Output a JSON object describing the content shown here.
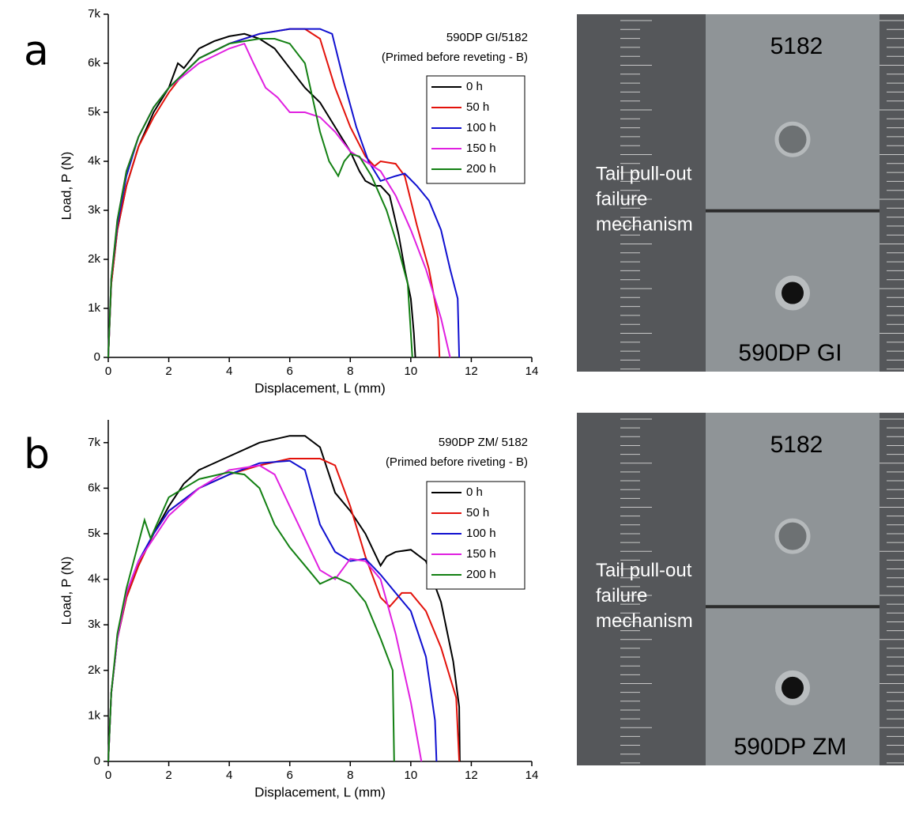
{
  "chart_data": [
    {
      "type": "line",
      "panel_label": "a",
      "annotations": [
        "590DP GI/5182",
        "(Primed before reveting - B)"
      ],
      "x_label": "Displacement, L (mm)",
      "y_label": "Load, P (N)",
      "xlim": [
        0,
        14
      ],
      "xticks": [
        0,
        2,
        4,
        6,
        8,
        10,
        12,
        14
      ],
      "ylim": [
        0,
        7000
      ],
      "yticks": [
        0,
        {
          "value": 1000,
          "label": "1k"
        },
        {
          "value": 2000,
          "label": "2k"
        },
        {
          "value": 3000,
          "label": "3k"
        },
        {
          "value": 4000,
          "label": "4k"
        },
        {
          "value": 5000,
          "label": "5k"
        },
        {
          "value": 6000,
          "label": "6k"
        },
        {
          "value": 7000,
          "label": "7k"
        }
      ],
      "legend": "upper right",
      "series": [
        {
          "name": "0 h",
          "color": "#000000",
          "x": [
            0,
            0.1,
            0.3,
            0.6,
            1,
            1.5,
            2,
            2.3,
            2.5,
            3,
            3.5,
            4,
            4.5,
            5,
            5.5,
            6,
            6.5,
            7,
            7.5,
            8,
            8.3,
            8.5,
            8.8,
            9,
            9.3,
            9.6,
            9.8,
            10,
            10.1,
            10.15
          ],
          "values": [
            0,
            1500,
            2600,
            3500,
            4300,
            5000,
            5500,
            6000,
            5900,
            6300,
            6450,
            6550,
            6600,
            6500,
            6300,
            5900,
            5500,
            5200,
            4700,
            4200,
            3800,
            3600,
            3500,
            3500,
            3300,
            2500,
            1800,
            1200,
            500,
            0
          ]
        },
        {
          "name": "50 h",
          "color": "#e3120b",
          "x": [
            0,
            0.1,
            0.3,
            0.6,
            1,
            1.5,
            2,
            2.5,
            3,
            4,
            5,
            6,
            6.5,
            7,
            7.5,
            8,
            8.5,
            8.8,
            9,
            9.5,
            9.8,
            10.2,
            10.6,
            10.9,
            10.95
          ],
          "values": [
            0,
            1500,
            2600,
            3500,
            4300,
            4900,
            5400,
            5800,
            6100,
            6400,
            6600,
            6700,
            6700,
            6500,
            5500,
            4700,
            4100,
            3900,
            4000,
            3950,
            3700,
            2700,
            1800,
            800,
            0
          ]
        },
        {
          "name": "100 h",
          "color": "#1010d0",
          "x": [
            0,
            0.1,
            0.3,
            0.6,
            1,
            1.5,
            2,
            3,
            4,
            5,
            6,
            7,
            7.4,
            7.8,
            8.2,
            8.6,
            9,
            9.5,
            9.8,
            10.2,
            10.6,
            11,
            11.3,
            11.55,
            11.6
          ],
          "values": [
            0,
            1600,
            2700,
            3700,
            4500,
            5100,
            5500,
            6100,
            6400,
            6600,
            6700,
            6700,
            6600,
            5600,
            4700,
            4000,
            3600,
            3700,
            3750,
            3500,
            3200,
            2600,
            1800,
            1200,
            0
          ]
        },
        {
          "name": "150 h",
          "color": "#e020e0",
          "x": [
            0,
            0.1,
            0.3,
            0.6,
            1,
            1.5,
            2,
            3,
            4,
            4.5,
            4.8,
            5.2,
            5.6,
            6,
            6.5,
            7,
            7.5,
            8,
            8.5,
            9,
            9.5,
            10,
            10.5,
            11,
            11.3
          ],
          "values": [
            0,
            1600,
            2800,
            3800,
            4500,
            5100,
            5500,
            6000,
            6300,
            6400,
            6000,
            5500,
            5300,
            5000,
            5000,
            4900,
            4600,
            4200,
            4000,
            3800,
            3300,
            2600,
            1800,
            800,
            0
          ]
        },
        {
          "name": "200 h",
          "color": "#138013",
          "x": [
            0,
            0.1,
            0.3,
            0.6,
            1,
            1.5,
            2,
            3,
            4,
            5,
            5.5,
            6,
            6.5,
            7,
            7.3,
            7.6,
            7.8,
            8,
            8.3,
            8.7,
            9.2,
            9.6,
            9.9,
            10,
            10.05
          ],
          "values": [
            0,
            1600,
            2800,
            3800,
            4500,
            5100,
            5500,
            6100,
            6400,
            6500,
            6500,
            6400,
            6000,
            4600,
            4000,
            3700,
            4000,
            4150,
            4100,
            3700,
            3000,
            2200,
            1500,
            500,
            0
          ]
        }
      ],
      "photo": {
        "top_label": "5182",
        "caption": [
          "Tail pull-out",
          "failure",
          "mechanism"
        ],
        "bottom_label": "590DP GI"
      }
    },
    {
      "type": "line",
      "panel_label": "b",
      "annotations": [
        "590DP ZM/ 5182",
        "(Primed before riveting - B)"
      ],
      "x_label": "Displacement, L (mm)",
      "y_label": "Load, P (N)",
      "xlim": [
        0,
        14
      ],
      "xticks": [
        0,
        2,
        4,
        6,
        8,
        10,
        12,
        14
      ],
      "ylim": [
        0,
        7500
      ],
      "yticks": [
        0,
        {
          "value": 1000,
          "label": "1k"
        },
        {
          "value": 2000,
          "label": "2k"
        },
        {
          "value": 3000,
          "label": "3k"
        },
        {
          "value": 4000,
          "label": "4k"
        },
        {
          "value": 5000,
          "label": "5k"
        },
        {
          "value": 6000,
          "label": "6k"
        },
        {
          "value": 7000,
          "label": "7k"
        }
      ],
      "legend": "upper right",
      "series": [
        {
          "name": "0 h",
          "color": "#000000",
          "x": [
            0,
            0.1,
            0.3,
            0.6,
            1,
            1.5,
            2,
            2.5,
            3,
            4,
            5,
            6,
            6.5,
            7,
            7.5,
            8,
            8.5,
            9,
            9.2,
            9.5,
            10,
            10.5,
            11,
            11.4,
            11.6,
            11.62
          ],
          "values": [
            0,
            1500,
            2700,
            3600,
            4300,
            5000,
            5600,
            6100,
            6400,
            6700,
            7000,
            7150,
            7150,
            6900,
            5900,
            5500,
            5000,
            4300,
            4500,
            4600,
            4650,
            4400,
            3500,
            2200,
            1200,
            0
          ]
        },
        {
          "name": "50 h",
          "color": "#e3120b",
          "x": [
            0,
            0.1,
            0.3,
            0.6,
            1,
            1.5,
            2,
            3,
            4,
            5,
            6,
            7,
            7.5,
            8,
            8.5,
            9,
            9.3,
            9.7,
            10,
            10.5,
            11,
            11.5,
            11.6
          ],
          "values": [
            0,
            1500,
            2700,
            3600,
            4300,
            5000,
            5500,
            6000,
            6300,
            6500,
            6650,
            6650,
            6500,
            5600,
            4500,
            3600,
            3400,
            3700,
            3700,
            3300,
            2500,
            1400,
            0
          ]
        },
        {
          "name": "100 h",
          "color": "#1010d0",
          "x": [
            0,
            0.1,
            0.3,
            0.6,
            1,
            1.5,
            2,
            3,
            4,
            5,
            6,
            6.5,
            7,
            7.5,
            8,
            8.5,
            9,
            9.5,
            10,
            10.5,
            10.8,
            10.85
          ],
          "values": [
            0,
            1500,
            2700,
            3700,
            4400,
            5000,
            5500,
            6000,
            6300,
            6550,
            6600,
            6400,
            5200,
            4600,
            4400,
            4450,
            4100,
            3700,
            3300,
            2300,
            900,
            0
          ]
        },
        {
          "name": "150 h",
          "color": "#e020e0",
          "x": [
            0,
            0.1,
            0.3,
            0.6,
            1,
            1.5,
            2,
            3,
            4,
            5,
            5.5,
            6,
            6.5,
            7,
            7.5,
            8,
            8.5,
            9,
            9.5,
            10,
            10.35
          ],
          "values": [
            0,
            1500,
            2700,
            3700,
            4400,
            4900,
            5400,
            6000,
            6400,
            6500,
            6300,
            5600,
            4900,
            4200,
            4000,
            4450,
            4400,
            4000,
            2800,
            1300,
            0
          ]
        },
        {
          "name": "200 h",
          "color": "#138013",
          "x": [
            0,
            0.1,
            0.3,
            0.6,
            1,
            1.2,
            1.4,
            2,
            3,
            4,
            4.5,
            5,
            5.5,
            6,
            6.5,
            7,
            7.5,
            8,
            8.5,
            9,
            9.4,
            9.45
          ],
          "values": [
            0,
            1500,
            2800,
            3800,
            4800,
            5300,
            4900,
            5800,
            6200,
            6350,
            6300,
            6000,
            5200,
            4700,
            4300,
            3900,
            4050,
            3900,
            3500,
            2700,
            2000,
            0
          ]
        }
      ],
      "photo": {
        "top_label": "5182",
        "caption": [
          "Tail pull-out",
          "failure",
          "mechanism"
        ],
        "bottom_label": "590DP ZM"
      }
    }
  ]
}
